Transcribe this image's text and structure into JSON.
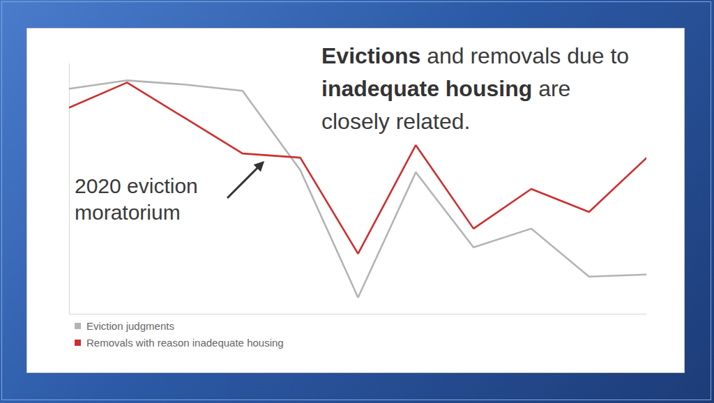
{
  "chart_data": {
    "type": "line",
    "title": "Evictions and removals due to inadequate housing are closely related.",
    "annotations": [
      "2020 eviction moratorium"
    ],
    "x": [
      1,
      2,
      3,
      4,
      5,
      6,
      7,
      8,
      9,
      10,
      11
    ],
    "xlim": [
      1,
      11
    ],
    "ylim": [
      0,
      120
    ],
    "tick_labels": false,
    "legend": "bottom-left",
    "series": [
      {
        "name": "Eviction judgments",
        "color": "#b3b3b3",
        "values": [
          108,
          112,
          110,
          107,
          69,
          8,
          68,
          32,
          41,
          18,
          19
        ]
      },
      {
        "name": "Removals with reason inadequate housing",
        "color": "#cc2f2f",
        "values": [
          99,
          111,
          94,
          77,
          75,
          29,
          81,
          41,
          60,
          49,
          75
        ]
      }
    ]
  }
}
